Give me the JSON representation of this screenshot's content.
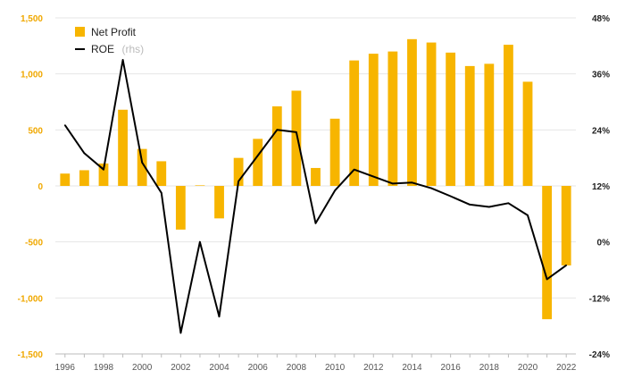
{
  "chart_data": {
    "type": "bar",
    "x": [
      1996,
      1997,
      1998,
      1999,
      2000,
      2001,
      2002,
      2003,
      2004,
      2005,
      2006,
      2007,
      2008,
      2009,
      2010,
      2011,
      2012,
      2013,
      2014,
      2015,
      2016,
      2017,
      2018,
      2019,
      2020,
      2021,
      2022
    ],
    "x_tick_labels": [
      "1996",
      "1998",
      "2000",
      "2002",
      "2004",
      "2006",
      "2008",
      "2010",
      "2012",
      "2014",
      "2016",
      "2018",
      "2020",
      "2022"
    ],
    "series": [
      {
        "name": "Net Profit",
        "kind": "bar",
        "axis": "left",
        "color": "#f7b500",
        "values": [
          110,
          140,
          200,
          680,
          330,
          220,
          -390,
          5,
          -290,
          250,
          420,
          710,
          850,
          160,
          600,
          1120,
          1180,
          1200,
          1310,
          1280,
          1190,
          1070,
          1090,
          1260,
          930,
          -1190,
          -710
        ]
      },
      {
        "name": "ROE",
        "name_suffix": "(rhs)",
        "kind": "line",
        "axis": "right",
        "color": "#000000",
        "values": [
          25,
          19,
          15.5,
          39,
          17,
          10.5,
          -19.5,
          0,
          -16,
          13,
          18.5,
          24,
          23.5,
          4,
          11,
          15.5,
          14,
          12.5,
          12.7,
          11.5,
          9.8,
          8,
          7.5,
          8.3,
          5.7,
          -8,
          -5
        ]
      }
    ],
    "left_axis": {
      "ylim": [
        -1500,
        1500
      ],
      "ticks": [
        -1500,
        -1000,
        -500,
        0,
        500,
        1000,
        1500
      ],
      "tick_labels": [
        "-1,500",
        "-1,000",
        "-500",
        "0",
        "500",
        "1,000",
        "1,500"
      ],
      "color": "#f0a800"
    },
    "right_axis": {
      "ylim": [
        -24,
        48
      ],
      "ticks": [
        -24,
        -12,
        0,
        12,
        24,
        36,
        48
      ],
      "tick_labels": [
        "-24%",
        "-12%",
        "0%",
        "12%",
        "24%",
        "36%",
        "48%"
      ],
      "color": "#222222"
    },
    "grid": true,
    "legend_position": "top-left"
  }
}
